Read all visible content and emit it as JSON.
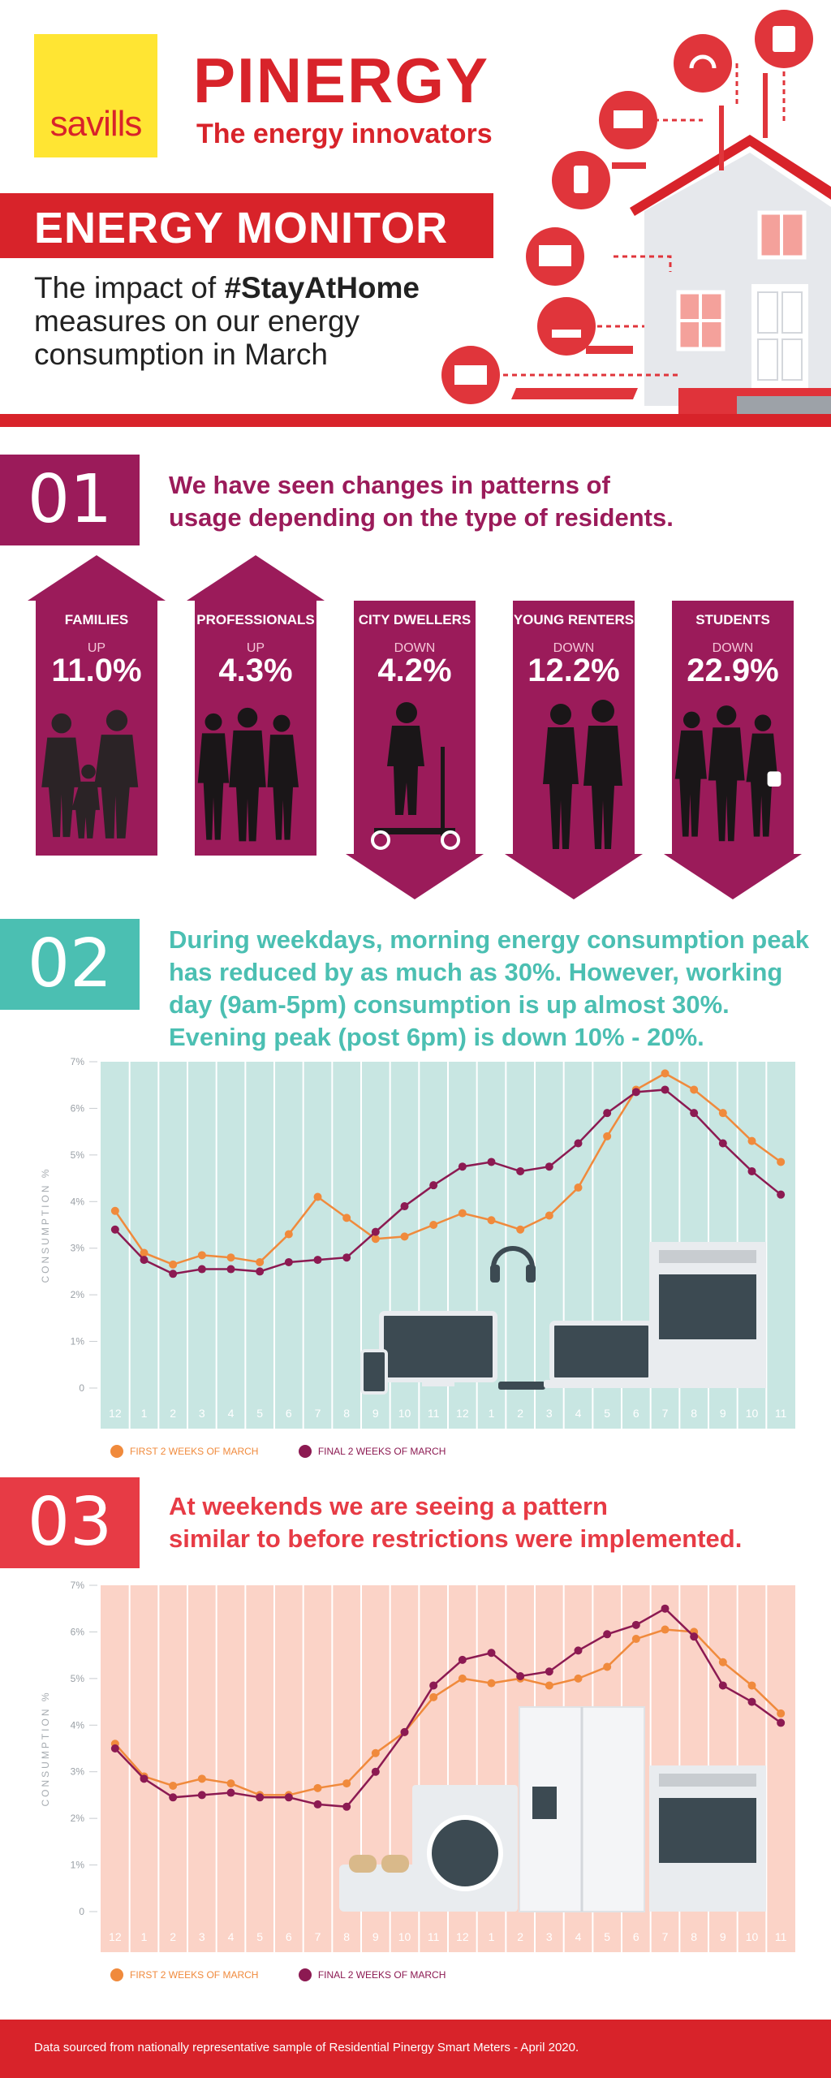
{
  "header": {
    "logo_text": "savills",
    "brand": "PINERGY",
    "tagline": "The energy innovators",
    "banner": "ENERGY MONITOR",
    "sub_pre": "The impact of ",
    "sub_hashtag": "#StayAtHome",
    "sub_post": " measures on our energy consumption in March"
  },
  "colors": {
    "red": "#d8232a",
    "magenta": "#9b1b5a",
    "teal": "#4bbfb2",
    "orange": "#f08a3c",
    "plum": "#8c1a52",
    "chart1_bg": "#c8e6e2",
    "chart2_bg": "#fbd3c7"
  },
  "section1": {
    "number": "01",
    "text_line1": "We have seen changes in patterns of",
    "text_line2": "usage depending on the type of residents.",
    "groups": [
      {
        "name": "FAMILIES",
        "direction": "UP",
        "value": "11.0%",
        "silhouette": "family-silhouette-icon"
      },
      {
        "name": "PROFESSIONALS",
        "direction": "UP",
        "value": "4.3%",
        "silhouette": "professionals-silhouette-icon"
      },
      {
        "name": "CITY DWELLERS",
        "direction": "DOWN",
        "value": "4.2%",
        "silhouette": "scooter-rider-silhouette-icon"
      },
      {
        "name": "YOUNG RENTERS",
        "direction": "DOWN",
        "value": "12.2%",
        "silhouette": "young-renters-silhouette-icon"
      },
      {
        "name": "STUDENTS",
        "direction": "DOWN",
        "value": "22.9%",
        "silhouette": "students-silhouette-icon"
      }
    ]
  },
  "section2": {
    "number": "02",
    "text_line1": "During weekdays, morning energy consumption peak",
    "text_line2": "has reduced by as much as 30%. However, working",
    "text_line3": "day (9am-5pm) consumption is up almost 30%.",
    "text_line4": "Evening peak (post 6pm) is down 10% - 20%."
  },
  "section3": {
    "number": "03",
    "text_line1": "At weekends we are seeing a pattern",
    "text_line2": "similar to before restrictions were implemented."
  },
  "chart_data": [
    {
      "type": "line",
      "ylabel": "CONSUMPTION %",
      "yticks": [
        "0",
        "1%",
        "2%",
        "3%",
        "4%",
        "5%",
        "6%",
        "7%"
      ],
      "ylim": [
        0,
        7
      ],
      "categories": [
        "12",
        "1",
        "2",
        "3",
        "4",
        "5",
        "6",
        "7",
        "8",
        "9",
        "10",
        "11",
        "12",
        "1",
        "2",
        "3",
        "4",
        "5",
        "6",
        "7",
        "8",
        "9",
        "10",
        "11"
      ],
      "series": [
        {
          "name": "FIRST 2 WEEKS OF MARCH",
          "color": "#f08a3c",
          "values": [
            3.8,
            2.9,
            2.65,
            2.85,
            2.8,
            2.7,
            3.3,
            4.1,
            3.65,
            3.2,
            3.25,
            3.5,
            3.75,
            3.6,
            3.4,
            3.7,
            4.3,
            5.4,
            6.4,
            6.75,
            6.4,
            5.9,
            5.3,
            4.85
          ]
        },
        {
          "name": "FINAL 2 WEEKS OF MARCH",
          "color": "#8c1a52",
          "values": [
            3.4,
            2.75,
            2.45,
            2.55,
            2.55,
            2.5,
            2.7,
            2.75,
            2.8,
            3.35,
            3.9,
            4.35,
            4.75,
            4.85,
            4.65,
            4.75,
            5.25,
            5.9,
            6.35,
            6.4,
            5.9,
            5.25,
            4.65,
            4.15
          ]
        }
      ],
      "legend_position": "bottom-left"
    },
    {
      "type": "line",
      "ylabel": "CONSUMPTION %",
      "yticks": [
        "0",
        "1%",
        "2%",
        "3%",
        "4%",
        "5%",
        "6%",
        "7%"
      ],
      "ylim": [
        0,
        7
      ],
      "categories": [
        "12",
        "1",
        "2",
        "3",
        "4",
        "5",
        "6",
        "7",
        "8",
        "9",
        "10",
        "11",
        "12",
        "1",
        "2",
        "3",
        "4",
        "5",
        "6",
        "7",
        "8",
        "9",
        "10",
        "11"
      ],
      "series": [
        {
          "name": "FIRST 2 WEEKS OF MARCH",
          "color": "#f08a3c",
          "values": [
            3.6,
            2.9,
            2.7,
            2.85,
            2.75,
            2.5,
            2.5,
            2.65,
            2.75,
            3.4,
            3.85,
            4.6,
            5.0,
            4.9,
            5.0,
            4.85,
            5.0,
            5.25,
            5.85,
            6.05,
            6.0,
            5.35,
            4.85,
            4.25
          ]
        },
        {
          "name": "FINAL 2 WEEKS OF MARCH",
          "color": "#8c1a52",
          "values": [
            3.5,
            2.85,
            2.45,
            2.5,
            2.55,
            2.45,
            2.45,
            2.3,
            2.25,
            3.0,
            3.85,
            4.85,
            5.4,
            5.55,
            5.05,
            5.15,
            5.6,
            5.95,
            6.15,
            6.5,
            5.9,
            4.85,
            4.5,
            4.05
          ]
        }
      ],
      "legend_position": "bottom-left"
    }
  ],
  "footer": {
    "text": "Data sourced from nationally representative sample of Residential Pinergy Smart Meters - April 2020."
  }
}
